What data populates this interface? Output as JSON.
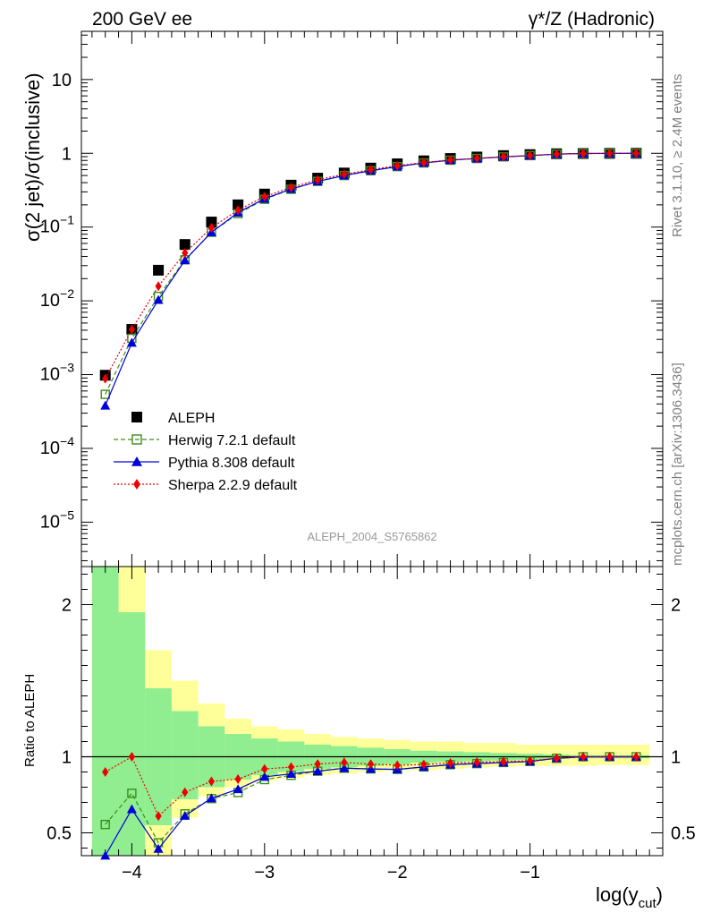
{
  "header": {
    "left": "200 GeV ee",
    "right": "γ*/Z (Hadronic)",
    "side_top": "Rivet 3.1.10, ≥ 2.4M events",
    "side_bottom": "mcplots.cern.ch [arXiv:1306.3436]",
    "analysis": "ALEPH_2004_S5765862"
  },
  "chart_data": [
    {
      "type": "scatter",
      "ylabel": "σ(2 jet)/σ(inclusive)",
      "yscale": "log",
      "ylim": [
        2.5e-06,
        45
      ],
      "xlim": [
        -4.38,
        0.0
      ],
      "y_ticks": [
        {
          "v": 1e-05,
          "base": "10",
          "exp": "−5"
        },
        {
          "v": 0.0001,
          "base": "10",
          "exp": "−4"
        },
        {
          "v": 0.001,
          "base": "10",
          "exp": "−3"
        },
        {
          "v": 0.01,
          "base": "10",
          "exp": "−2"
        },
        {
          "v": 0.1,
          "base": "10",
          "exp": "−1"
        },
        {
          "v": 1,
          "base": "1",
          "exp": ""
        },
        {
          "v": 10,
          "base": "10",
          "exp": ""
        }
      ],
      "x": [
        -4.2,
        -4.0,
        -3.8,
        -3.6,
        -3.4,
        -3.2,
        -3.0,
        -2.8,
        -2.6,
        -2.4,
        -2.2,
        -2.0,
        -1.8,
        -1.6,
        -1.4,
        -1.2,
        -1.0,
        -0.8,
        -0.6,
        -0.4,
        -0.2
      ],
      "legend_position": "bottom-left",
      "series": [
        {
          "name": "ALEPH",
          "color": "#000000",
          "marker": "square-filled",
          "line": "none",
          "values": [
            0.00098,
            0.0041,
            0.026,
            0.058,
            0.117,
            0.2,
            0.28,
            0.37,
            0.46,
            0.54,
            0.63,
            0.72,
            0.79,
            0.85,
            0.89,
            0.93,
            0.96,
            0.985,
            0.993,
            0.997,
            1.0
          ]
        },
        {
          "name": "Herwig 7.2.1 default",
          "color": "#3a8f1a",
          "marker": "square-open",
          "line": "dashed",
          "values": [
            0.00054,
            0.0031,
            0.0115,
            0.036,
            0.085,
            0.152,
            0.238,
            0.325,
            0.416,
            0.5,
            0.58,
            0.66,
            0.74,
            0.806,
            0.85,
            0.894,
            0.93,
            0.975,
            0.993,
            0.997,
            1.0
          ]
        },
        {
          "name": "Pythia 8.308 default",
          "color": "#0000dd",
          "marker": "triangle-filled",
          "line": "solid",
          "values": [
            0.00038,
            0.0027,
            0.0103,
            0.0355,
            0.085,
            0.157,
            0.242,
            0.328,
            0.416,
            0.5,
            0.58,
            0.66,
            0.74,
            0.806,
            0.85,
            0.894,
            0.93,
            0.975,
            0.993,
            0.997,
            1.0
          ]
        },
        {
          "name": "Sherpa 2.2.9 default",
          "color": "#ee0000",
          "marker": "diamond-filled",
          "line": "dotted",
          "values": [
            0.00088,
            0.0041,
            0.0158,
            0.0445,
            0.098,
            0.17,
            0.258,
            0.345,
            0.438,
            0.52,
            0.6,
            0.68,
            0.75,
            0.815,
            0.858,
            0.9,
            0.935,
            0.975,
            0.993,
            0.997,
            1.0
          ]
        }
      ]
    },
    {
      "type": "line",
      "ylabel": "Ratio to ALEPH",
      "xlabel": "log(y",
      "xlabel_sub": "cut",
      "xlabel_end": ")",
      "ylim": [
        0.35,
        2.25
      ],
      "xlim": [
        -4.38,
        0.0
      ],
      "x_ticks": [
        {
          "v": -4,
          "label": "−4"
        },
        {
          "v": -3,
          "label": "−3"
        },
        {
          "v": -2,
          "label": "−2"
        },
        {
          "v": -1,
          "label": "−1"
        }
      ],
      "y_ticks": [
        {
          "v": 0.5,
          "label": "0.5"
        },
        {
          "v": 1,
          "label": "1"
        },
        {
          "v": 2,
          "label": "2"
        }
      ],
      "band_edges": [
        -4.3,
        -4.1,
        -3.9,
        -3.7,
        -3.5,
        -3.3,
        -3.1,
        -2.9,
        -2.7,
        -2.5,
        -2.3,
        -2.1,
        -1.9,
        -1.7,
        -1.5,
        -1.3,
        -1.1,
        -0.9,
        -0.7,
        -0.5,
        -0.3,
        -0.1
      ],
      "stat_band": {
        "color": "#90ee90",
        "lo": [
          0.3,
          0.3,
          0.55,
          0.72,
          0.8,
          0.85,
          0.88,
          0.9,
          0.92,
          0.93,
          0.94,
          0.95,
          0.96,
          0.965,
          0.97,
          0.975,
          0.98,
          0.985,
          0.99,
          0.99,
          0.99
        ],
        "hi": [
          2.4,
          1.95,
          1.45,
          1.3,
          1.2,
          1.15,
          1.12,
          1.1,
          1.08,
          1.07,
          1.06,
          1.05,
          1.04,
          1.035,
          1.03,
          1.025,
          1.02,
          1.015,
          1.01,
          1.01,
          1.01
        ]
      },
      "total_band": {
        "color": "#ffff99",
        "lo": [
          0.3,
          0.3,
          0.3,
          0.6,
          0.74,
          0.8,
          0.84,
          0.86,
          0.88,
          0.89,
          0.9,
          0.91,
          0.91,
          0.92,
          0.93,
          0.935,
          0.94,
          0.94,
          0.94,
          0.945,
          0.945
        ],
        "hi": [
          2.4,
          2.4,
          1.7,
          1.5,
          1.35,
          1.25,
          1.2,
          1.18,
          1.15,
          1.13,
          1.12,
          1.11,
          1.1,
          1.1,
          1.09,
          1.09,
          1.08,
          1.08,
          1.08,
          1.08,
          1.08
        ]
      },
      "series": [
        {
          "name": "Herwig 7.2.1 default",
          "color": "#3a8f1a",
          "marker": "square-open",
          "line": "dashed",
          "values": [
            0.555,
            0.76,
            0.435,
            0.625,
            0.725,
            0.765,
            0.85,
            0.878,
            0.905,
            0.925,
            0.92,
            0.917,
            0.933,
            0.948,
            0.955,
            0.962,
            0.969,
            0.99,
            1.0,
            1.0,
            1.0
          ]
        },
        {
          "name": "Pythia 8.308 default",
          "color": "#0000dd",
          "marker": "triangle-filled",
          "line": "solid",
          "values": [
            0.35,
            0.655,
            0.395,
            0.612,
            0.727,
            0.787,
            0.868,
            0.888,
            0.905,
            0.925,
            0.92,
            0.917,
            0.933,
            0.948,
            0.955,
            0.962,
            0.969,
            0.99,
            1.0,
            1.0,
            1.0
          ]
        },
        {
          "name": "Sherpa 2.2.9 default",
          "color": "#ee0000",
          "marker": "diamond-filled",
          "line": "dotted",
          "values": [
            0.9,
            1.0,
            0.61,
            0.767,
            0.838,
            0.853,
            0.92,
            0.932,
            0.952,
            0.963,
            0.952,
            0.944,
            0.949,
            0.959,
            0.964,
            0.968,
            0.974,
            0.99,
            1.0,
            1.0,
            1.0
          ]
        }
      ]
    }
  ]
}
